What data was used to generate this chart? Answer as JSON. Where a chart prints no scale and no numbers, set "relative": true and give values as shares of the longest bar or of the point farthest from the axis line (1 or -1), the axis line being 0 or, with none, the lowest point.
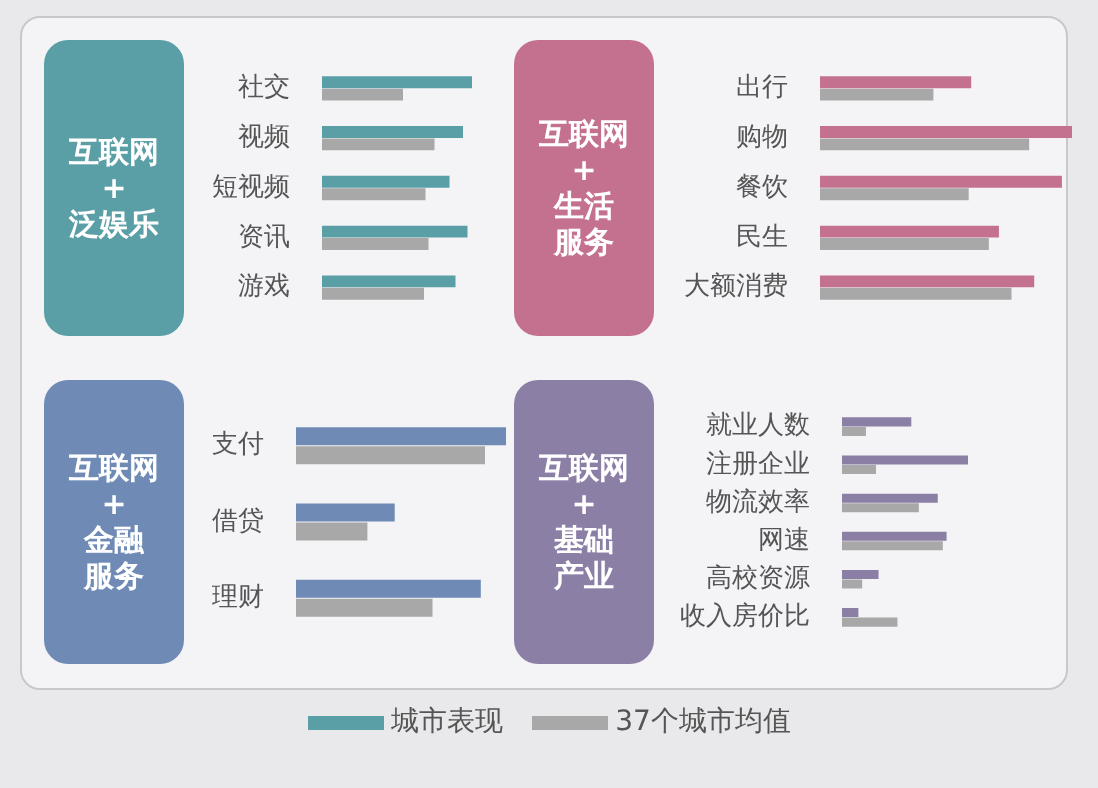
{
  "chart_data": [
    {
      "type": "bar",
      "orientation": "horizontal",
      "relative": true,
      "title": "互联网+泛娱乐",
      "categories": [
        "社交",
        "视频",
        "短视频",
        "资讯",
        "游戏"
      ],
      "legend": "bottom",
      "series": [
        {
          "name": "城市表现",
          "color": "#5a9ea6",
          "values": [
            1,
            0.94,
            0.85,
            0.97,
            0.89
          ]
        },
        {
          "name": "37个城市均值",
          "color": "#a8a8a8",
          "values": [
            0.54,
            0.75,
            0.69,
            0.71,
            0.68
          ]
        }
      ]
    },
    {
      "type": "bar",
      "orientation": "horizontal",
      "relative": true,
      "title": "互联网+生活服务",
      "categories": [
        "出行",
        "购物",
        "餐饮",
        "民生",
        "大额消费"
      ],
      "series": [
        {
          "color": "#c4718f",
          "values": [
            0.6,
            1,
            0.96,
            0.71,
            0.85
          ]
        },
        {
          "color": "#a8a8a8",
          "values": [
            0.45,
            0.83,
            0.59,
            0.67,
            0.76
          ]
        }
      ]
    },
    {
      "type": "bar",
      "orientation": "horizontal",
      "relative": true,
      "title": "互联网+金融服务",
      "categories": [
        "支付",
        "借贷",
        "理财"
      ],
      "series": [
        {
          "color": "#6f8bb5",
          "values": [
            1,
            0.47,
            0.88
          ]
        },
        {
          "color": "#a8a8a8",
          "values": [
            0.9,
            0.34,
            0.65
          ]
        }
      ]
    },
    {
      "type": "bar",
      "orientation": "horizontal",
      "relative": true,
      "title": "互联网+基础产业",
      "categories": [
        "就业人数",
        "注册企业",
        "物流效率",
        "网速",
        "高校资源",
        "收入房价比"
      ],
      "series": [
        {
          "color": "#8c7fa6",
          "values": [
            0.55,
            1,
            0.76,
            0.83,
            0.29,
            0.13
          ]
        },
        {
          "color": "#a8a8a8",
          "values": [
            0.19,
            0.27,
            0.61,
            0.8,
            0.16,
            0.44
          ]
        }
      ]
    }
  ]
}
